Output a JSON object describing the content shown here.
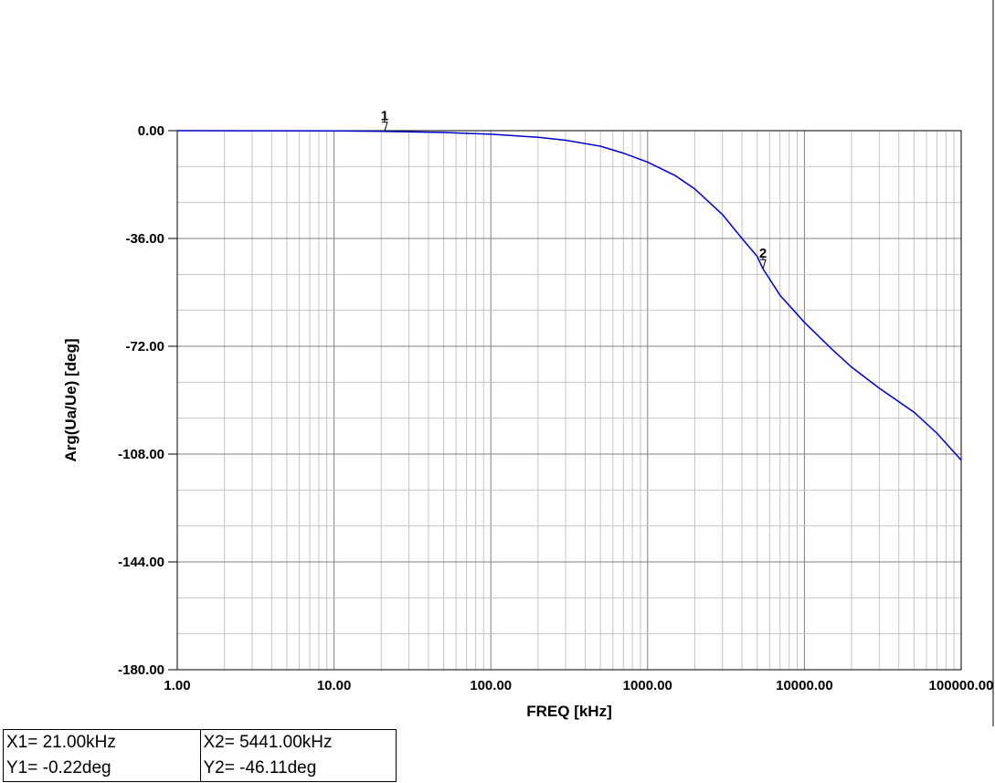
{
  "chart_data": {
    "type": "line",
    "xscale": "log",
    "xlim": [
      1,
      100000
    ],
    "ylim": [
      -180,
      0
    ],
    "xlabel": "FREQ [kHz]",
    "ylabel": "Arg(Ua/Ue) [deg]",
    "x_tick_labels": [
      "1.00",
      "10.00",
      "100.00",
      "1000.00",
      "10000.00",
      "100000.00"
    ],
    "x_tick_values": [
      1,
      10,
      100,
      1000,
      10000,
      100000
    ],
    "y_tick_labels": [
      "0.00",
      "-36.00",
      "-72.00",
      "-108.00",
      "-144.00",
      "-180.00"
    ],
    "y_tick_values": [
      0,
      -36,
      -72,
      -108,
      -144,
      -180
    ],
    "grid": true,
    "line_color": "#0000cc",
    "series": [
      {
        "x": [
          1,
          10,
          20,
          50,
          100,
          200,
          300,
          500,
          700,
          1000,
          1500,
          2000,
          3000,
          4000,
          5000,
          5441,
          7000,
          10000,
          15000,
          20000,
          30000,
          50000,
          70000,
          100000
        ],
        "y": [
          0,
          -0.1,
          -0.2,
          -0.6,
          -1.2,
          -2.2,
          -3.2,
          -5.2,
          -7.5,
          -10.5,
          -15,
          -19.5,
          -28,
          -36,
          -42,
          -46.11,
          -55,
          -64,
          -73,
          -79,
          -86,
          -94,
          -101,
          -110
        ]
      }
    ],
    "markers": [
      {
        "label": "1",
        "x": 21,
        "y": -0.22
      },
      {
        "label": "2",
        "x": 5441,
        "y": -46.11
      }
    ]
  },
  "readout": {
    "x1": "X1= 21.00kHz",
    "y1": "Y1= -0.22deg",
    "x2": "X2= 5441.00kHz",
    "y2": "Y2= -46.11deg"
  }
}
